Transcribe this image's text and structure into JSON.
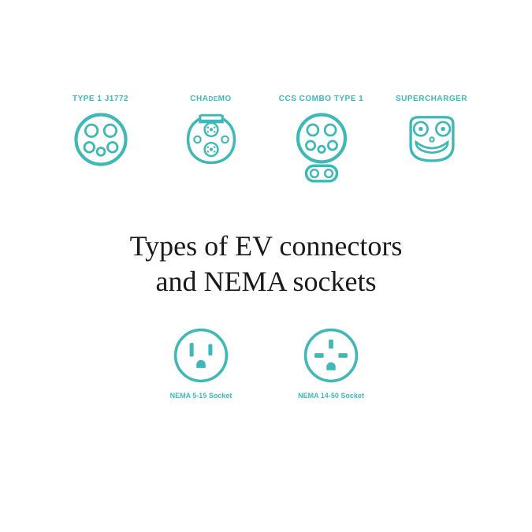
{
  "theme": {
    "accent_color": "#3fb8b8",
    "title_color": "#1a1a1a",
    "background_color": "#ffffff",
    "stroke_width_outer": 4,
    "stroke_width_inner": 2.5,
    "label_font_family": "Arial, Helvetica, sans-serif",
    "title_font_family": "Georgia, serif",
    "title_font_size": 36,
    "label_top_font_size": 10,
    "label_bottom_font_size": 9
  },
  "title_line1": "Types of EV connectors",
  "title_line2": "and NEMA sockets",
  "connectors": [
    {
      "id": "j1772",
      "label_html": "TYPE 1 J1772"
    },
    {
      "id": "chademo",
      "label_html": "CHA<span class='small'>DE</span>MO"
    },
    {
      "id": "ccs1",
      "label_html": "CCS COMBO TYPE 1"
    },
    {
      "id": "supercharger",
      "label_html": "SUPERCHARGER"
    }
  ],
  "sockets": [
    {
      "id": "nema515",
      "label": "NEMA 5-15 Socket"
    },
    {
      "id": "nema1450",
      "label": "NEMA 14-50 Socket"
    }
  ]
}
